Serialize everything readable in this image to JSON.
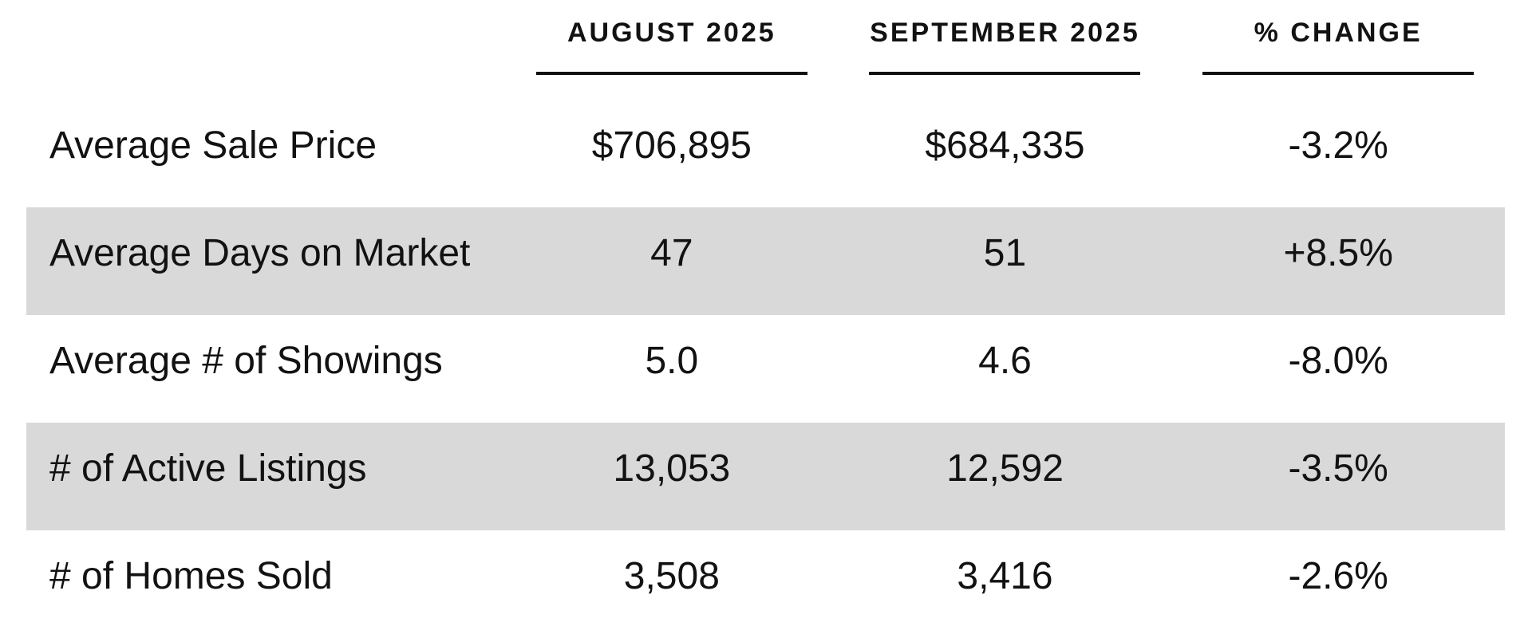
{
  "table": {
    "columns": [
      "AUGUST 2025",
      "SEPTEMBER 2025",
      "% CHANGE"
    ],
    "rows": [
      {
        "label": "Average Sale Price",
        "values": [
          "$706,895",
          "$684,335",
          "-3.2%"
        ],
        "shaded": false
      },
      {
        "label": "Average Days on Market",
        "values": [
          "47",
          "51",
          "+8.5%"
        ],
        "shaded": true
      },
      {
        "label": "Average # of Showings",
        "values": [
          "5.0",
          "4.6",
          "-8.0%"
        ],
        "shaded": false
      },
      {
        "label": "# of Active Listings",
        "values": [
          "13,053",
          "12,592",
          "-3.5%"
        ],
        "shaded": true
      },
      {
        "label": "# of Homes Sold",
        "values": [
          "3,508",
          "3,416",
          "-2.6%"
        ],
        "shaded": false
      }
    ],
    "colors": {
      "shaded_row": "#d9d9d9",
      "text": "#121212",
      "underline": "#121212",
      "background": "#ffffff"
    }
  },
  "chart_data": {
    "type": "table",
    "title": "",
    "columns": [
      "",
      "AUGUST 2025",
      "SEPTEMBER 2025",
      "% CHANGE"
    ],
    "rows": [
      [
        "Average Sale Price",
        "$706,895",
        "$684,335",
        "-3.2%"
      ],
      [
        "Average Days on Market",
        "47",
        "51",
        "+8.5%"
      ],
      [
        "Average # of Showings",
        "5.0",
        "4.6",
        "-8.0%"
      ],
      [
        "# of Active Listings",
        "13,053",
        "12,592",
        "-3.5%"
      ],
      [
        "# of Homes Sold",
        "3,508",
        "3,416",
        "-2.6%"
      ]
    ],
    "layout_hints": {
      "shaded_row_indices": [
        1,
        3
      ],
      "value_alignment": "center",
      "header_style": "uppercase-bold-underlined"
    }
  }
}
